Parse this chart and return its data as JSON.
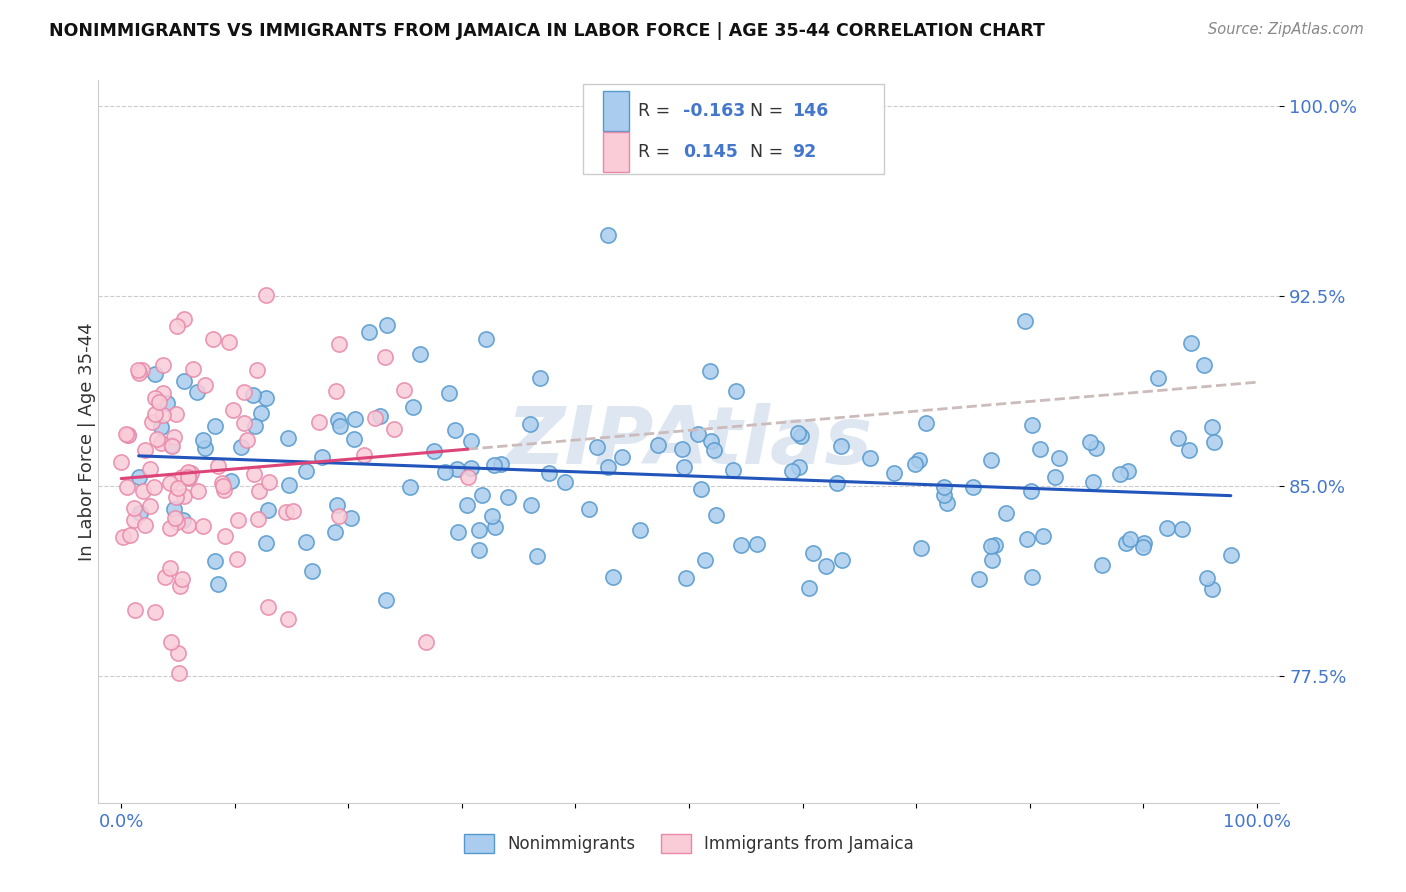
{
  "title": "NONIMMIGRANTS VS IMMIGRANTS FROM JAMAICA IN LABOR FORCE | AGE 35-44 CORRELATION CHART",
  "source": "Source: ZipAtlas.com",
  "ylabel": "In Labor Force | Age 35-44",
  "y_tick_positions": [
    0.775,
    0.85,
    0.925,
    1.0
  ],
  "y_tick_labels": [
    "77.5%",
    "85.0%",
    "92.5%",
    "100.0%"
  ],
  "ylim": [
    0.725,
    1.01
  ],
  "xlim": [
    -0.02,
    1.02
  ],
  "nonimm_R": -0.163,
  "nonimm_N": 146,
  "imm_R": 0.145,
  "imm_N": 92,
  "nonimm_dot_color": "#aaccee",
  "nonimm_edge_color": "#5599cc",
  "imm_dot_color": "#f9ccd8",
  "imm_edge_color": "#e888aa",
  "nonimm_line_color": "#2255bb",
  "imm_line_color": "#dd4477",
  "dash_color": "#ccbbbb",
  "tick_label_color": "#4477cc",
  "ylabel_color": "#333333",
  "background_color": "#ffffff",
  "grid_color": "#cccccc",
  "legend_box_edge": "#cccccc",
  "legend_text_dark": "#333333",
  "legend_text_blue": "#4477cc",
  "watermark_color": "#c8d8e8",
  "seed_nonimm": 42,
  "seed_imm": 7,
  "marker_size": 120,
  "marker_lw": 1.2
}
